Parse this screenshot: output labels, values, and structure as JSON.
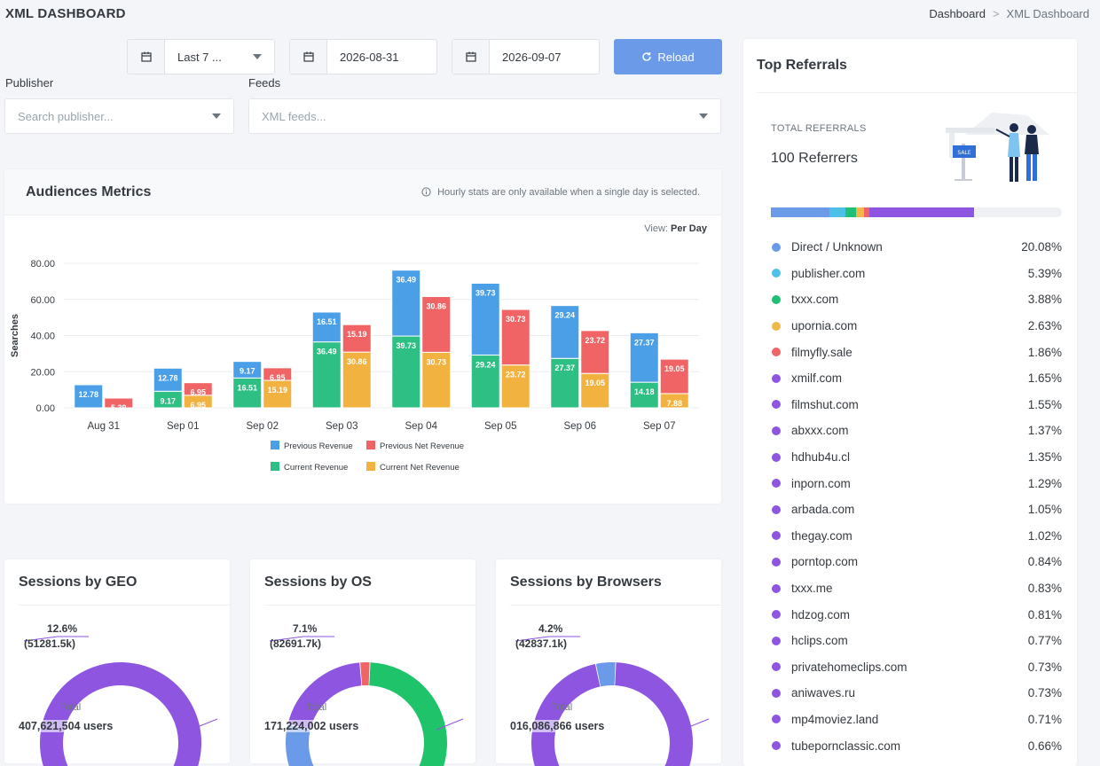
{
  "header": {
    "title": "XML DASHBOARD",
    "breadcrumb_home": "Dashboard",
    "breadcrumb_sep": ">",
    "breadcrumb_current": "XML Dashboard"
  },
  "filters": {
    "range_label": "Last 7 ...",
    "date_from": "2026-08-31",
    "date_to": "2026-09-07",
    "reload_label": "Reload",
    "publisher_label": "Publisher",
    "publisher_placeholder": "Search publisher...",
    "feeds_label": "Feeds",
    "feeds_placeholder": "XML feeds..."
  },
  "audiences": {
    "title": "Audiences Metrics",
    "note": "Hourly stats are only available when a single day is selected.",
    "view_label": "View:",
    "view_value": "Per Day"
  },
  "chart_data": {
    "type": "bar",
    "stacked": true,
    "ylabel": "Searches",
    "ylim": [
      0,
      80
    ],
    "yticks": [
      "0.00",
      "20.00",
      "40.00",
      "60.00",
      "80.00"
    ],
    "categories": [
      "Aug 31",
      "Sep 01",
      "Sep 02",
      "Sep 03",
      "Sep 04",
      "Sep 05",
      "Sep 06",
      "Sep 07"
    ],
    "stacks": [
      {
        "name": "Revenue",
        "series": [
          {
            "name": "Current Revenue",
            "color": "#2ebf85",
            "values": [
              0,
              9.17,
              16.51,
              36.49,
              39.73,
              29.24,
              27.37,
              14.18
            ]
          },
          {
            "name": "Previous Revenue",
            "color": "#4a9fe6",
            "values": [
              12.78,
              12.78,
              9.17,
              16.51,
              36.49,
              39.73,
              29.24,
              27.37
            ]
          }
        ]
      },
      {
        "name": "Net Revenue",
        "series": [
          {
            "name": "Current Net Revenue",
            "color": "#f2b240",
            "values": [
              0,
              6.95,
              15.19,
              30.86,
              30.73,
              23.72,
              19.05,
              7.88
            ]
          },
          {
            "name": "Previous Net Revenue",
            "color": "#f06466",
            "values": [
              5.39,
              6.95,
              6.95,
              15.19,
              30.86,
              30.73,
              23.72,
              19.05
            ]
          }
        ]
      }
    ],
    "legend": [
      "Previous Revenue",
      "Previous Net Revenue",
      "Current Revenue",
      "Current Net Revenue"
    ],
    "legend_colors": [
      "#4a9fe6",
      "#f06466",
      "#2ebf85",
      "#f2b240"
    ],
    "legend_position": "bottom",
    "grid": true
  },
  "donuts": [
    {
      "title": "Sessions by GEO",
      "pct": "12.6%",
      "value": "(51281.5k)",
      "total_label": "Total",
      "total": "407,621,504 users"
    },
    {
      "title": "Sessions by OS",
      "pct": "7.1%",
      "value": "(82691.7k)",
      "total_label": "Total",
      "total": "171,224,002 users"
    },
    {
      "title": "Sessions by Browsers",
      "pct": "4.2%",
      "value": "(42837.1k)",
      "total_label": "Total",
      "total": "016,086,866 users"
    }
  ],
  "referrals": {
    "title": "Top Referrals",
    "total_label": "TOTAL REFERRALS",
    "total_value": "100 Referrers",
    "bar_segments": [
      {
        "color": "#6b9ae8",
        "pct": 20.08
      },
      {
        "color": "#4dc0e8",
        "pct": 5.39
      },
      {
        "color": "#1fbf75",
        "pct": 3.88
      },
      {
        "color": "#f0b849",
        "pct": 2.63
      },
      {
        "color": "#f06466",
        "pct": 1.86
      },
      {
        "color": "#8d55e0",
        "pct": 36.0
      }
    ],
    "items": [
      {
        "name": "Direct / Unknown",
        "pct": "20.08%",
        "color": "#6b9ae8"
      },
      {
        "name": "publisher.com",
        "pct": "5.39%",
        "color": "#4dc0e8"
      },
      {
        "name": "txxx.com",
        "pct": "3.88%",
        "color": "#1fbf75"
      },
      {
        "name": "upornia.com",
        "pct": "2.63%",
        "color": "#f0b849"
      },
      {
        "name": "filmyfly.sale",
        "pct": "1.86%",
        "color": "#f06466"
      },
      {
        "name": "xmilf.com",
        "pct": "1.65%",
        "color": "#8d55e0"
      },
      {
        "name": "filmshut.com",
        "pct": "1.55%",
        "color": "#8d55e0"
      },
      {
        "name": "abxxx.com",
        "pct": "1.37%",
        "color": "#8d55e0"
      },
      {
        "name": "hdhub4u.cl",
        "pct": "1.35%",
        "color": "#8d55e0"
      },
      {
        "name": "inporn.com",
        "pct": "1.29%",
        "color": "#8d55e0"
      },
      {
        "name": "arbada.com",
        "pct": "1.05%",
        "color": "#8d55e0"
      },
      {
        "name": "thegay.com",
        "pct": "1.02%",
        "color": "#8d55e0"
      },
      {
        "name": "porntop.com",
        "pct": "0.84%",
        "color": "#8d55e0"
      },
      {
        "name": "txxx.me",
        "pct": "0.83%",
        "color": "#8d55e0"
      },
      {
        "name": "hdzog.com",
        "pct": "0.81%",
        "color": "#8d55e0"
      },
      {
        "name": "hclips.com",
        "pct": "0.77%",
        "color": "#8d55e0"
      },
      {
        "name": "privatehomeclips.com",
        "pct": "0.73%",
        "color": "#8d55e0"
      },
      {
        "name": "aniwaves.ru",
        "pct": "0.73%",
        "color": "#8d55e0"
      },
      {
        "name": "mp4moviez.land",
        "pct": "0.71%",
        "color": "#8d55e0"
      },
      {
        "name": "tubepornclassic.com",
        "pct": "0.66%",
        "color": "#8d55e0"
      }
    ]
  }
}
